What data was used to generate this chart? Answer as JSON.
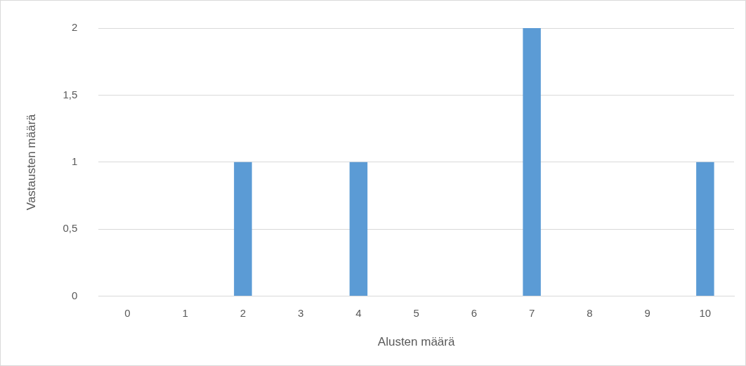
{
  "chart_data": {
    "type": "bar",
    "xlabel": "Alusten määrä",
    "ylabel": "Vastausten määrä",
    "categories": [
      "0",
      "1",
      "2",
      "3",
      "4",
      "5",
      "6",
      "7",
      "8",
      "9",
      "10"
    ],
    "values": [
      0,
      0,
      1,
      0,
      1,
      0,
      0,
      2,
      0,
      0,
      1
    ],
    "color": "#5b9bd5",
    "ylim": [
      0,
      2
    ],
    "yticks": [
      0,
      {
        "value": 0.5,
        "label": "0,5"
      },
      1,
      {
        "value": 1.5,
        "label": "1,5"
      },
      2
    ],
    "grid": "y",
    "legend": false
  }
}
